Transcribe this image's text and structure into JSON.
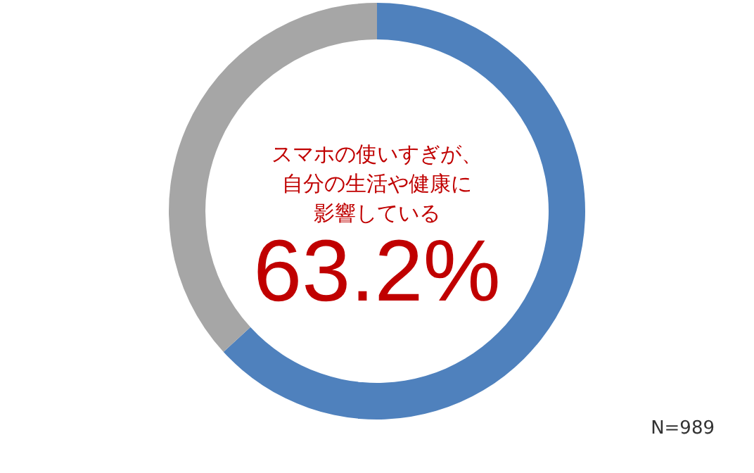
{
  "chart_data": {
    "type": "donut",
    "title": "スマホの使いすぎが、自分の生活や健康に影響している",
    "categories": [
      null,
      null
    ],
    "values": [
      63.2,
      36.8
    ],
    "colors": [
      "#4f81bd",
      "#a6a6a6"
    ],
    "value_labels": [
      "63.2%",
      null
    ],
    "annotations": [
      "N=989"
    ]
  }
}
